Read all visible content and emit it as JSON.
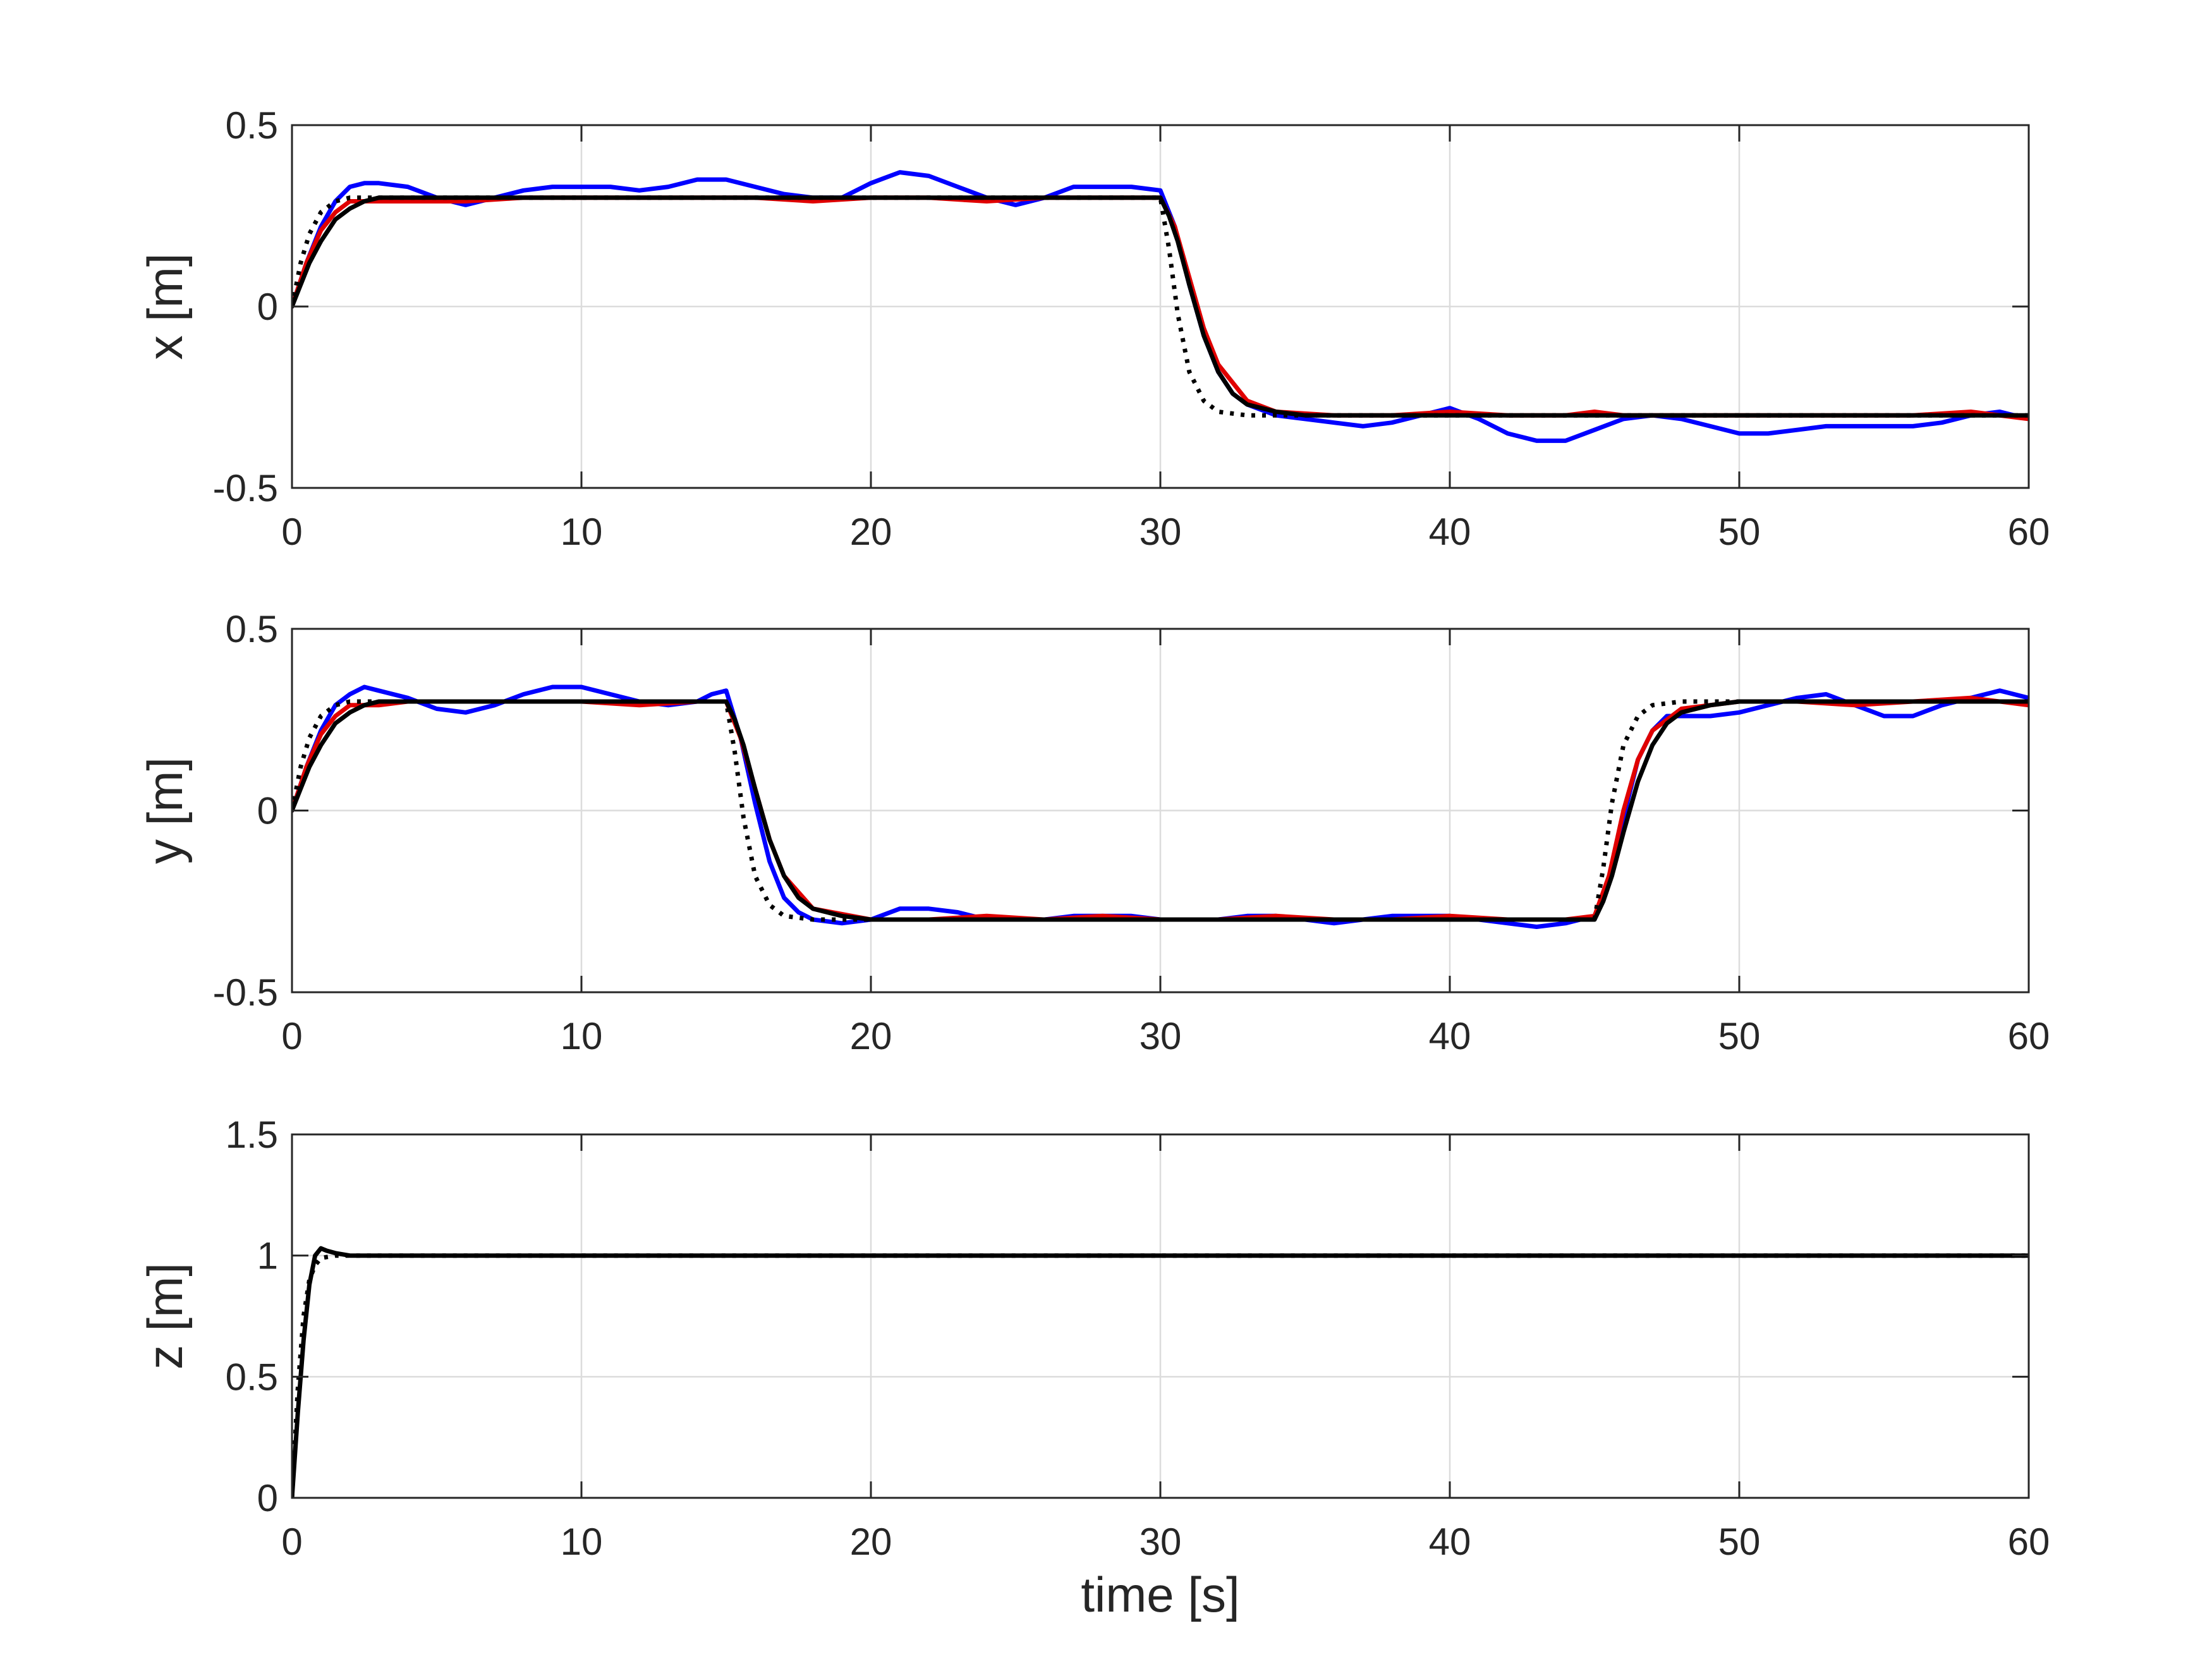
{
  "figure": {
    "xlabel": "time [s]"
  },
  "colors": {
    "blue": "#0000ff",
    "red": "#e00000",
    "black": "#000000",
    "grid": "#dcdcdc",
    "axes": "#262626"
  },
  "chart_data": [
    {
      "type": "line",
      "title": "",
      "xlabel": "",
      "ylabel": "x [m]",
      "xlim": [
        0,
        60
      ],
      "ylim": [
        -0.5,
        0.5
      ],
      "xticks": [
        0,
        10,
        20,
        30,
        40,
        50,
        60
      ],
      "xtick_labels": [
        "0",
        "10",
        "20",
        "30",
        "40",
        "50",
        "60"
      ],
      "yticks": [
        -0.5,
        0,
        0.5
      ],
      "ytick_labels": [
        "-0.5",
        "0",
        "0.5"
      ],
      "grid": true,
      "series": [
        {
          "color": "#0000ff",
          "style": "solid",
          "x": [
            0,
            0.5,
            1,
            1.5,
            2,
            2.5,
            3,
            4,
            5,
            6,
            7,
            8,
            9,
            10,
            11,
            12,
            13,
            14,
            15,
            16,
            17,
            18,
            19,
            20,
            21,
            22,
            23,
            24,
            25,
            26,
            27,
            28,
            29,
            30,
            30.5,
            31,
            31.5,
            32,
            32.5,
            33,
            34,
            35,
            36,
            37,
            38,
            39,
            40,
            41,
            42,
            43,
            44,
            45,
            46,
            47,
            48,
            49,
            50,
            51,
            52,
            53,
            54,
            55,
            56,
            57,
            58,
            59,
            60
          ],
          "y": [
            0,
            0.12,
            0.22,
            0.29,
            0.33,
            0.34,
            0.34,
            0.33,
            0.3,
            0.28,
            0.3,
            0.32,
            0.33,
            0.33,
            0.33,
            0.32,
            0.33,
            0.35,
            0.35,
            0.33,
            0.31,
            0.3,
            0.3,
            0.34,
            0.37,
            0.36,
            0.33,
            0.3,
            0.28,
            0.3,
            0.33,
            0.33,
            0.33,
            0.32,
            0.22,
            0.06,
            -0.08,
            -0.18,
            -0.24,
            -0.27,
            -0.3,
            -0.31,
            -0.32,
            -0.33,
            -0.32,
            -0.3,
            -0.28,
            -0.31,
            -0.35,
            -0.37,
            -0.37,
            -0.34,
            -0.31,
            -0.3,
            -0.31,
            -0.33,
            -0.35,
            -0.35,
            -0.34,
            -0.33,
            -0.33,
            -0.33,
            -0.33,
            -0.32,
            -0.3,
            -0.29,
            -0.31
          ]
        },
        {
          "color": "#e00000",
          "style": "solid",
          "x": [
            0,
            0.5,
            1,
            1.5,
            2,
            3,
            4,
            6,
            8,
            10,
            12,
            14,
            16,
            18,
            20,
            22,
            24,
            26,
            28,
            30,
            30.5,
            31,
            31.5,
            32,
            33,
            34,
            36,
            38,
            40,
            42,
            44,
            45,
            46,
            48,
            50,
            52,
            54,
            56,
            58,
            60
          ],
          "y": [
            0,
            0.12,
            0.21,
            0.26,
            0.29,
            0.29,
            0.29,
            0.29,
            0.3,
            0.3,
            0.3,
            0.3,
            0.3,
            0.29,
            0.3,
            0.3,
            0.29,
            0.3,
            0.3,
            0.3,
            0.22,
            0.08,
            -0.06,
            -0.16,
            -0.26,
            -0.29,
            -0.3,
            -0.3,
            -0.29,
            -0.3,
            -0.3,
            -0.29,
            -0.3,
            -0.3,
            -0.3,
            -0.3,
            -0.3,
            -0.3,
            -0.29,
            -0.31
          ]
        },
        {
          "color": "#000000",
          "style": "solid",
          "x": [
            0,
            0.3,
            0.6,
            1,
            1.5,
            2,
            2.5,
            3,
            4,
            10,
            20,
            30,
            30.3,
            30.6,
            31,
            31.5,
            32,
            32.5,
            33,
            34,
            35,
            40,
            50,
            60
          ],
          "y": [
            0,
            0.06,
            0.12,
            0.18,
            0.24,
            0.27,
            0.29,
            0.3,
            0.3,
            0.3,
            0.3,
            0.3,
            0.25,
            0.18,
            0.06,
            -0.08,
            -0.18,
            -0.24,
            -0.27,
            -0.29,
            -0.3,
            -0.3,
            -0.3,
            -0.3
          ]
        },
        {
          "color": "#000000",
          "style": "dotted",
          "x": [
            0,
            0.3,
            0.6,
            1,
            1.5,
            2,
            3,
            10,
            20,
            30,
            30.3,
            30.6,
            31,
            31.5,
            32,
            33,
            34,
            40,
            50,
            60
          ],
          "y": [
            0,
            0.12,
            0.2,
            0.26,
            0.29,
            0.3,
            0.3,
            0.3,
            0.3,
            0.3,
            0.16,
            -0.02,
            -0.18,
            -0.26,
            -0.29,
            -0.3,
            -0.3,
            -0.3,
            -0.3,
            -0.3
          ]
        }
      ]
    },
    {
      "type": "line",
      "title": "",
      "xlabel": "",
      "ylabel": "y [m]",
      "xlim": [
        0,
        60
      ],
      "ylim": [
        -0.5,
        0.5
      ],
      "xticks": [
        0,
        10,
        20,
        30,
        40,
        50,
        60
      ],
      "xtick_labels": [
        "0",
        "10",
        "20",
        "30",
        "40",
        "50",
        "60"
      ],
      "yticks": [
        -0.5,
        0,
        0.5
      ],
      "ytick_labels": [
        "-0.5",
        "0",
        "0.5"
      ],
      "grid": true,
      "series": [
        {
          "color": "#0000ff",
          "style": "solid",
          "x": [
            0,
            0.5,
            1,
            1.5,
            2,
            2.5,
            3,
            4,
            5,
            6,
            7,
            8,
            9,
            10,
            11,
            12,
            13,
            14,
            14.5,
            15,
            15.5,
            16,
            16.5,
            17,
            17.5,
            18,
            19,
            20,
            21,
            22,
            23,
            24,
            25,
            26,
            27,
            28,
            29,
            30,
            31,
            32,
            33,
            34,
            35,
            36,
            37,
            38,
            39,
            40,
            41,
            42,
            43,
            44,
            45,
            45.5,
            46,
            46.5,
            47,
            47.5,
            48,
            49,
            50,
            51,
            52,
            53,
            54,
            55,
            56,
            57,
            58,
            59,
            60
          ],
          "y": [
            0,
            0.12,
            0.22,
            0.29,
            0.32,
            0.34,
            0.33,
            0.31,
            0.28,
            0.27,
            0.29,
            0.32,
            0.34,
            0.34,
            0.32,
            0.3,
            0.29,
            0.3,
            0.32,
            0.33,
            0.2,
            0.02,
            -0.14,
            -0.24,
            -0.28,
            -0.3,
            -0.31,
            -0.3,
            -0.27,
            -0.27,
            -0.28,
            -0.3,
            -0.3,
            -0.3,
            -0.29,
            -0.29,
            -0.29,
            -0.3,
            -0.3,
            -0.3,
            -0.29,
            -0.29,
            -0.3,
            -0.31,
            -0.3,
            -0.29,
            -0.29,
            -0.29,
            -0.3,
            -0.31,
            -0.32,
            -0.31,
            -0.29,
            -0.2,
            -0.02,
            0.14,
            0.22,
            0.26,
            0.26,
            0.26,
            0.27,
            0.29,
            0.31,
            0.32,
            0.29,
            0.26,
            0.26,
            0.29,
            0.31,
            0.33,
            0.31
          ]
        },
        {
          "color": "#e00000",
          "style": "solid",
          "x": [
            0,
            0.5,
            1,
            1.5,
            2,
            3,
            4,
            6,
            8,
            10,
            12,
            14,
            15,
            15.5,
            16,
            16.5,
            17,
            18,
            20,
            22,
            24,
            26,
            28,
            30,
            32,
            34,
            36,
            38,
            40,
            42,
            44,
            45,
            45.5,
            46,
            46.5,
            47,
            48,
            50,
            52,
            54,
            56,
            58,
            60
          ],
          "y": [
            0,
            0.12,
            0.21,
            0.26,
            0.29,
            0.29,
            0.3,
            0.3,
            0.3,
            0.3,
            0.29,
            0.3,
            0.3,
            0.2,
            0.06,
            -0.08,
            -0.18,
            -0.27,
            -0.3,
            -0.3,
            -0.29,
            -0.3,
            -0.29,
            -0.3,
            -0.3,
            -0.29,
            -0.3,
            -0.3,
            -0.29,
            -0.3,
            -0.3,
            -0.29,
            -0.18,
            0.0,
            0.14,
            0.22,
            0.28,
            0.3,
            0.3,
            0.29,
            0.3,
            0.31,
            0.29
          ]
        },
        {
          "color": "#000000",
          "style": "solid",
          "x": [
            0,
            0.3,
            0.6,
            1,
            1.5,
            2,
            2.5,
            3,
            4,
            10,
            15,
            15.3,
            15.6,
            16,
            16.5,
            17,
            17.5,
            18,
            19,
            20,
            30,
            40,
            45,
            45.3,
            45.6,
            46,
            46.5,
            47,
            47.5,
            48,
            49,
            50,
            60
          ],
          "y": [
            0,
            0.06,
            0.12,
            0.18,
            0.24,
            0.27,
            0.29,
            0.3,
            0.3,
            0.3,
            0.3,
            0.25,
            0.18,
            0.06,
            -0.08,
            -0.18,
            -0.24,
            -0.27,
            -0.29,
            -0.3,
            -0.3,
            -0.3,
            -0.3,
            -0.25,
            -0.18,
            -0.06,
            0.08,
            0.18,
            0.24,
            0.27,
            0.29,
            0.3,
            0.3
          ]
        },
        {
          "color": "#000000",
          "style": "dotted",
          "x": [
            0,
            0.3,
            0.6,
            1,
            1.5,
            2,
            3,
            10,
            15,
            15.3,
            15.6,
            16,
            16.5,
            17,
            18,
            19,
            30,
            45,
            45.3,
            45.6,
            46,
            46.5,
            47,
            48,
            49,
            60
          ],
          "y": [
            0,
            0.12,
            0.2,
            0.26,
            0.29,
            0.3,
            0.3,
            0.3,
            0.3,
            0.16,
            -0.02,
            -0.18,
            -0.26,
            -0.29,
            -0.3,
            -0.3,
            -0.3,
            -0.3,
            -0.16,
            0.02,
            0.18,
            0.26,
            0.29,
            0.3,
            0.3,
            0.3
          ]
        }
      ]
    },
    {
      "type": "line",
      "title": "",
      "xlabel": "time [s]",
      "ylabel": "z [m]",
      "xlim": [
        0,
        60
      ],
      "ylim": [
        0,
        1.5
      ],
      "xticks": [
        0,
        10,
        20,
        30,
        40,
        50,
        60
      ],
      "xtick_labels": [
        "0",
        "10",
        "20",
        "30",
        "40",
        "50",
        "60"
      ],
      "yticks": [
        0,
        0.5,
        1,
        1.5
      ],
      "ytick_labels": [
        "0",
        "0.5",
        "1",
        "1.5"
      ],
      "grid": true,
      "series": [
        {
          "color": "#000000",
          "style": "dotted",
          "x": [
            0,
            0.2,
            0.4,
            0.6,
            0.8,
            1,
            1.5,
            2,
            60
          ],
          "y": [
            0,
            0.45,
            0.75,
            0.9,
            0.96,
            0.99,
            1.0,
            1.0,
            1.0
          ]
        },
        {
          "color": "#000000",
          "style": "solid",
          "x": [
            0,
            0.2,
            0.4,
            0.6,
            0.8,
            1,
            1.2,
            1.5,
            2,
            2.5,
            60
          ],
          "y": [
            0,
            0.35,
            0.65,
            0.88,
            1.0,
            1.03,
            1.02,
            1.01,
            1.0,
            1.0,
            1.0
          ]
        }
      ]
    }
  ]
}
